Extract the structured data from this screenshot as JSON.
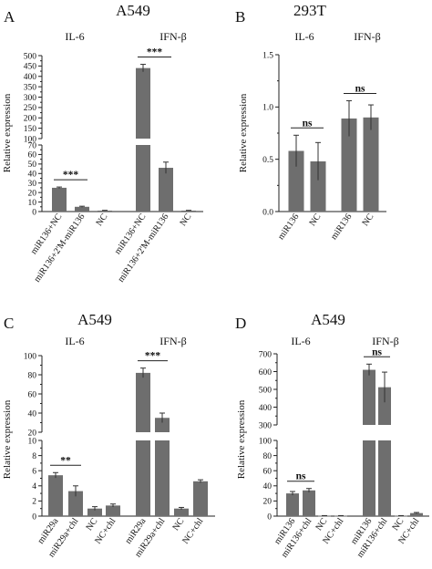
{
  "panels": {
    "A": {
      "letter": "A",
      "title": "A549",
      "group1": "IL-6",
      "group2": "IFN-β",
      "ylabel": "Relative expression"
    },
    "B": {
      "letter": "B",
      "title": "293T",
      "group1": "IL-6",
      "group2": "IFN-β",
      "ylabel": "Relative expression"
    },
    "C": {
      "letter": "C",
      "title": "A549",
      "group1": "IL-6",
      "group2": "IFN-β",
      "ylabel": "Relative expression"
    },
    "D": {
      "letter": "D",
      "title": "A549",
      "group1": "IL-6",
      "group2": "IFN-β",
      "ylabel": "Relative expression"
    }
  },
  "colors": {
    "bar": "#6e6e6e",
    "axis": "#222222"
  },
  "chart_data": [
    {
      "id": "A",
      "type": "bar",
      "title": "A549",
      "ylabel": "Relative expression",
      "groups": [
        "IL-6",
        "IFN-β"
      ],
      "categories": [
        "miR136+NC",
        "miR136+2'M-miR136",
        "NC",
        "miR136+NC",
        "miR136+2'M-miR136",
        "NC"
      ],
      "values": [
        25,
        5,
        1,
        440,
        46,
        1
      ],
      "errors": [
        0.8,
        0.6,
        0.3,
        18,
        6,
        0.3
      ],
      "y_segments": [
        {
          "range": [
            0,
            70
          ],
          "ticks": [
            "0",
            "10",
            "20",
            "30",
            "40",
            "50",
            "60",
            "70"
          ]
        },
        {
          "range": [
            100,
            500
          ],
          "ticks": [
            "100",
            "150",
            "200",
            "250",
            "300",
            "350",
            "400",
            "450",
            "500"
          ]
        }
      ],
      "significance": [
        {
          "from": 0,
          "to": 1,
          "label": "***"
        },
        {
          "from": 3,
          "to": 4,
          "label": "***"
        }
      ]
    },
    {
      "id": "B",
      "type": "bar",
      "title": "293T",
      "ylabel": "Relative expression",
      "groups": [
        "IL-6",
        "IFN-β"
      ],
      "categories": [
        "miR136",
        "NC",
        "miR136",
        "NC"
      ],
      "values": [
        0.58,
        0.48,
        0.89,
        0.9
      ],
      "errors": [
        0.15,
        0.18,
        0.17,
        0.12
      ],
      "y_segments": [
        {
          "range": [
            0,
            1.5
          ],
          "ticks": [
            "0.0",
            "0.5",
            "1.0",
            "1.5"
          ]
        }
      ],
      "significance": [
        {
          "from": 0,
          "to": 1,
          "label": "ns"
        },
        {
          "from": 2,
          "to": 3,
          "label": "ns"
        }
      ]
    },
    {
      "id": "C",
      "type": "bar",
      "title": "A549",
      "ylabel": "Relative expression",
      "groups": [
        "IL-6",
        "IFN-β"
      ],
      "categories": [
        "miR29a",
        "miR29a+chl",
        "NC",
        "NC+chl",
        "miR29a",
        "miR29a+chl",
        "NC",
        "NC+chl"
      ],
      "values": [
        5.4,
        3.3,
        1.0,
        1.4,
        82,
        35,
        1.0,
        4.6
      ],
      "errors": [
        0.35,
        0.7,
        0.25,
        0.2,
        5,
        5,
        0.15,
        0.2
      ],
      "y_segments": [
        {
          "range": [
            0,
            10
          ],
          "ticks": [
            "0",
            "2",
            "4",
            "6",
            "8",
            "10"
          ]
        },
        {
          "range": [
            20,
            100
          ],
          "ticks": [
            "20",
            "40",
            "60",
            "80",
            "100"
          ]
        }
      ],
      "significance": [
        {
          "from": 0,
          "to": 1,
          "label": "**"
        },
        {
          "from": 4,
          "to": 5,
          "label": "***"
        }
      ]
    },
    {
      "id": "D",
      "type": "bar",
      "title": "A549",
      "ylabel": "Relative expression",
      "groups": [
        "IL-6",
        "IFN-β"
      ],
      "categories": [
        "miR136",
        "miR136+chl",
        "NC",
        "NC+chl",
        "miR136",
        "miR136+chl",
        "NC",
        "NC+chl"
      ],
      "values": [
        30,
        34,
        0.5,
        0.5,
        610,
        512,
        0.5,
        4
      ],
      "errors": [
        2.5,
        2.5,
        0.2,
        0.2,
        32,
        85,
        0.2,
        0.8
      ],
      "y_segments": [
        {
          "range": [
            0,
            100
          ],
          "ticks": [
            "0",
            "20",
            "40",
            "60",
            "80",
            "100"
          ]
        },
        {
          "range": [
            300,
            700
          ],
          "ticks": [
            "300",
            "400",
            "500",
            "600",
            "700"
          ]
        }
      ],
      "significance": [
        {
          "from": 0,
          "to": 1,
          "label": "ns"
        },
        {
          "from": 4,
          "to": 5,
          "label": "ns"
        }
      ]
    }
  ]
}
